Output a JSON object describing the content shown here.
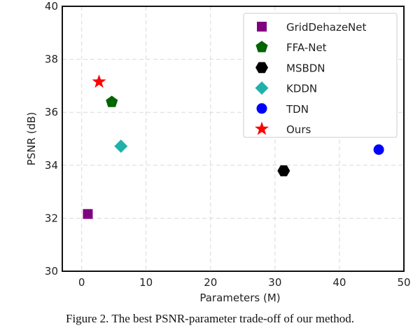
{
  "chart_data": {
    "type": "scatter",
    "xlabel": "Parameters (M)",
    "ylabel": "PSNR (dB)",
    "xlim": [
      -3,
      50
    ],
    "ylim": [
      30,
      40
    ],
    "xticks": [
      0,
      10,
      20,
      30,
      40,
      50
    ],
    "yticks": [
      30,
      32,
      34,
      36,
      38,
      40
    ],
    "grid": true,
    "legend_position": "top-right",
    "series": [
      {
        "name": "GridDehazeNet",
        "marker": "square",
        "color": "#800080",
        "x": [
          0.96
        ],
        "y": [
          32.16
        ]
      },
      {
        "name": "FFA-Net",
        "marker": "pentagon",
        "color": "#006400",
        "x": [
          4.68
        ],
        "y": [
          36.39
        ]
      },
      {
        "name": "MSBDN",
        "marker": "hexagon",
        "color": "#000000",
        "x": [
          31.35
        ],
        "y": [
          33.79
        ]
      },
      {
        "name": "KDDN",
        "marker": "diamond",
        "color": "#20b2aa",
        "x": [
          6.1
        ],
        "y": [
          34.72
        ]
      },
      {
        "name": "TDN",
        "marker": "circle",
        "color": "#0000ff",
        "x": [
          46.1
        ],
        "y": [
          34.59
        ]
      },
      {
        "name": "Ours",
        "marker": "star",
        "color": "#ff0000",
        "x": [
          2.7
        ],
        "y": [
          37.15
        ]
      }
    ]
  },
  "caption": "Figure 2. The best PSNR-parameter trade-off of our method."
}
